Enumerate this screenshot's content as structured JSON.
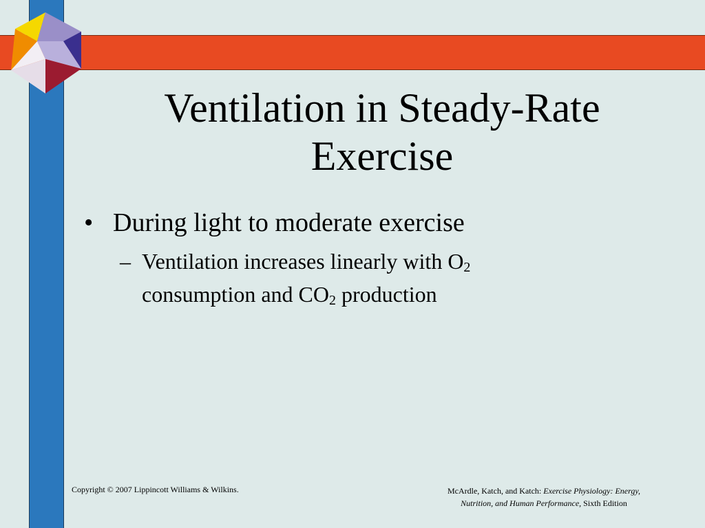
{
  "slide": {
    "title_line1": "Ventilation in Steady-Rate",
    "title_line2": "Exercise",
    "bullet1": {
      "marker": "•",
      "text": "During light to moderate exercise"
    },
    "bullet2": {
      "marker": "–",
      "text_a": "Ventilation increases linearly with O",
      "sub_a": "2",
      "text_b": "consumption and CO",
      "sub_b": "2",
      "text_c": " production"
    }
  },
  "footer": {
    "copyright": "Copyright © 2007 Lippincott Williams & Wilkins.",
    "authors": "McArdle, Katch, and Katch: ",
    "book_title_line1": "Exercise Physiology: Energy,",
    "book_title_line2": "Nutrition, and Human Performance,",
    "edition": " Sixth Edition"
  },
  "colors": {
    "background": "#deeae9",
    "blue_bar": "#2b78bd",
    "red_bar": "#e84a22",
    "logo_yellow": "#f5d800",
    "logo_orange": "#f08c00",
    "logo_lavender": "#9a8fc8",
    "logo_purple": "#3a2f8e",
    "logo_pink": "#e6dde8",
    "logo_maroon": "#9b1b30"
  },
  "icons": {
    "logo": "cube-logo-icon"
  }
}
